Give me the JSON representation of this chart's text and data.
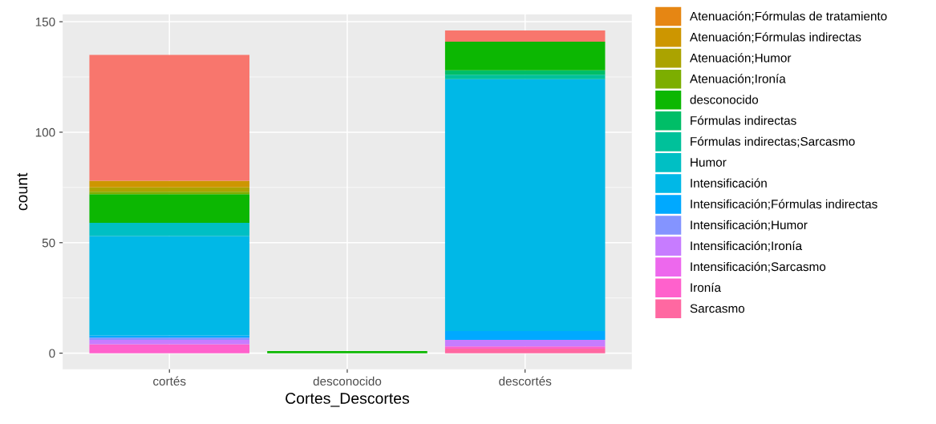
{
  "chart_data": {
    "type": "bar",
    "stacked": true,
    "xlabel": "Cortes_Descortes",
    "ylabel": "count",
    "categories": [
      "cortés",
      "desconocido",
      "descortés"
    ],
    "ylim": [
      -7.3,
      153.3
    ],
    "yticks": [
      0,
      50,
      100,
      150
    ],
    "grid": true,
    "legend": "right",
    "series": [
      {
        "name": "Sarcasmo",
        "color": "#ff68a1",
        "values": [
          0,
          0,
          2
        ]
      },
      {
        "name": "Ironía",
        "color": "#ff61cc",
        "values": [
          4,
          0,
          1
        ]
      },
      {
        "name": "Intensificación;Sarcasmo",
        "color": "#ed68ed",
        "values": [
          0,
          0,
          0
        ]
      },
      {
        "name": "Intensificación;Ironía",
        "color": "#c77cff",
        "values": [
          2,
          0,
          3
        ]
      },
      {
        "name": "Intensificación;Humor",
        "color": "#8494ff",
        "values": [
          1,
          0,
          0
        ]
      },
      {
        "name": "Intensificación;Fórmulas indirectas",
        "color": "#00a9ff",
        "values": [
          1,
          0,
          4
        ]
      },
      {
        "name": "Intensificación",
        "color": "#00b8e7",
        "values": [
          45,
          0,
          114
        ]
      },
      {
        "name": "Humor",
        "color": "#00bfc4",
        "values": [
          6,
          0,
          0
        ]
      },
      {
        "name": "Fórmulas indirectas;Sarcasmo",
        "color": "#00c19a",
        "values": [
          0,
          0,
          2
        ]
      },
      {
        "name": "Fórmulas indirectas",
        "color": "#00be67",
        "values": [
          0,
          0,
          2
        ]
      },
      {
        "name": "desconocido",
        "color": "#0cb702",
        "values": [
          13,
          1,
          13
        ]
      },
      {
        "name": "Atenuación;Ironía",
        "color": "#7cae00",
        "values": [
          1,
          0,
          0
        ]
      },
      {
        "name": "Atenuación;Humor",
        "color": "#aba300",
        "values": [
          2,
          0,
          0
        ]
      },
      {
        "name": "Atenuación;Fórmulas indirectas",
        "color": "#cd9600",
        "values": [
          3,
          0,
          0
        ]
      },
      {
        "name": "Atenuación;Fórmulas de tratamiento",
        "color": "#e68613",
        "values": [
          0,
          0,
          0
        ]
      },
      {
        "color": "#f8766d",
        "values": [
          57,
          0,
          5
        ]
      }
    ]
  }
}
